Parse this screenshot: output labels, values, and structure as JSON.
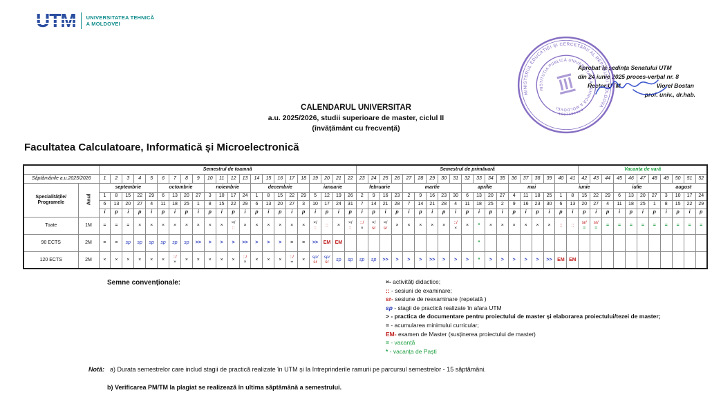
{
  "logo": {
    "mark": "UTM",
    "line1": "UNIVERSITATEA TEHNICĂ",
    "line2": "A MOLDOVEI"
  },
  "approval": {
    "line1": "Aprobat la ședința Senatului UTM",
    "line2": "din 24 iunie 2025 proces-verbal nr. 8",
    "rector_label": "Rector UTM",
    "rector_name": "Viorel Bostan",
    "rector_title": "prof. univ., dr.hab."
  },
  "stamp": {
    "outer_text": "MINISTERUL EDUCAȚIEI ȘI CERCETĂRII AL REPUBLICII MOLDOVA",
    "inner_text": "INSTITUȚIA PUBLICĂ UNIVERSITATEA TEHNICĂ A MOLDOVEI",
    "idno": "1007600010"
  },
  "title": {
    "line1": "CALENDARUL UNIVERSITAR",
    "line2": "a.u. 2025/2026, studii superioare de master, ciclul II",
    "line3": "(învățământ cu frecvență)"
  },
  "faculty_title": "Facultatea Calculatoare, Informatică și Microelectronică",
  "table": {
    "weeks_label": "Săptămânile a.u.2025/2026",
    "col1_header_line1": "Specialitățile/",
    "col1_header_line2": "Programele",
    "anul_header": "Anul",
    "semesters": [
      {
        "label": "Semestrul de toamnă",
        "span": 22,
        "green": false
      },
      {
        "label": "Semestrul de primăvară",
        "span": 19,
        "green": false
      },
      {
        "label": "Vacanța de vară",
        "span": 11,
        "green": true
      }
    ],
    "months": [
      {
        "label": "septembrie",
        "span": 5
      },
      {
        "label": "octombrie",
        "span": 4
      },
      {
        "label": "noiembrie",
        "span": 4
      },
      {
        "label": "decembrie",
        "span": 5
      },
      {
        "label": "ianuarie",
        "span": 4
      },
      {
        "label": "februarie",
        "span": 4
      },
      {
        "label": "martie",
        "span": 5
      },
      {
        "label": "aprilie",
        "span": 4
      },
      {
        "label": "mai",
        "span": 4
      },
      {
        "label": "iunie",
        "span": 5
      },
      {
        "label": "iulie",
        "span": 4
      },
      {
        "label": "august",
        "span": 4
      }
    ],
    "weeks": [
      1,
      2,
      3,
      4,
      5,
      6,
      7,
      8,
      9,
      10,
      11,
      12,
      13,
      14,
      15,
      16,
      17,
      18,
      19,
      20,
      21,
      22,
      23,
      24,
      25,
      26,
      27,
      28,
      29,
      30,
      31,
      32,
      33,
      34,
      35,
      36,
      37,
      38,
      39,
      40,
      41,
      42,
      43,
      44,
      45,
      46,
      47,
      48,
      49,
      50,
      51,
      52
    ],
    "start_dates": [
      1,
      8,
      15,
      22,
      29,
      6,
      13,
      20,
      27,
      3,
      10,
      17,
      24,
      1,
      8,
      15,
      22,
      29,
      5,
      12,
      19,
      26,
      2,
      9,
      16,
      23,
      2,
      9,
      16,
      23,
      30,
      6,
      13,
      20,
      27,
      4,
      11,
      18,
      25,
      1,
      8,
      15,
      22,
      29,
      6,
      13,
      20,
      27,
      3,
      10,
      17,
      24
    ],
    "end_dates": [
      6,
      13,
      20,
      27,
      4,
      11,
      18,
      25,
      1,
      8,
      15,
      22,
      29,
      6,
      13,
      20,
      27,
      3,
      10,
      17,
      24,
      31,
      7,
      14,
      21,
      28,
      7,
      14,
      21,
      28,
      4,
      11,
      18,
      25,
      2,
      9,
      16,
      23,
      30,
      6,
      13,
      20,
      27,
      4,
      11,
      18,
      25,
      1,
      8,
      15,
      22,
      29
    ],
    "ip": [
      "i",
      "p",
      "i",
      "p",
      "i",
      "p",
      "i",
      "p",
      "i",
      "p",
      "i",
      "p",
      "i",
      "p",
      "i",
      "p",
      "i",
      "p",
      "i",
      "p",
      "i",
      "p",
      "i",
      "p",
      "i",
      "p",
      "i",
      "p",
      "i",
      "p",
      "i",
      "p",
      "i",
      "p",
      "i",
      "p",
      "i",
      "p",
      "i",
      "p",
      "i",
      "p",
      "i",
      "p",
      "i",
      "p",
      "i",
      "p",
      "i",
      "p",
      "i",
      "p"
    ],
    "rows": [
      {
        "label": "Toate",
        "year": "1M",
        "cells": [
          "=",
          "=",
          "=",
          "x",
          "x",
          "x",
          "x",
          "x",
          "x",
          "x",
          "x",
          "x/::",
          "x",
          "x",
          "x",
          "x",
          "x",
          "x",
          "x/::",
          "::",
          "x",
          "x/::",
          "::/x",
          "x/sr",
          "x/sr",
          "x",
          "x",
          "x",
          "x",
          "x",
          "::/x",
          "x",
          "*",
          "x",
          "x",
          "x",
          "x",
          "x",
          "x",
          "::",
          "::",
          "sr/=g",
          "sr/=g",
          "=g",
          "=g",
          "=g",
          "=g",
          "=g",
          "=g",
          "=g",
          "=g",
          "=g"
        ]
      },
      {
        "label": "90 ECTS",
        "year": "2M",
        "cells": [
          "=",
          "=",
          "sp",
          "sp",
          "sp",
          "sp",
          "sp",
          "sp",
          ">>",
          ">",
          ">",
          ">",
          ">>",
          ">",
          ">",
          ">",
          "=",
          "=",
          ">>",
          "EM",
          "EM",
          "",
          "",
          "",
          "",
          "",
          "",
          "",
          "",
          "",
          "",
          "",
          "*",
          "",
          "",
          "",
          "",
          "",
          "",
          "",
          "",
          "",
          "",
          "",
          "",
          "",
          "",
          "",
          "",
          "",
          "",
          ""
        ]
      },
      {
        "label": "120 ECTS",
        "year": "2M",
        "cells": [
          "x",
          "x",
          "x",
          "x",
          "x",
          "x",
          "::/x",
          "x",
          "x",
          "x",
          "x",
          "x",
          "::/x",
          "x",
          "x",
          "x",
          "::/=",
          "x",
          "sp/sr",
          "sp/sr",
          "sp",
          "sp",
          "sp",
          "sp",
          ">>",
          ">",
          ">",
          ">",
          ">>",
          ">",
          ">",
          ">",
          "*",
          ">",
          ">",
          ">",
          ">",
          ">",
          ">>",
          "EM",
          "EM",
          "",
          "",
          "",
          "",
          "",
          "",
          "",
          "",
          "",
          "",
          ""
        ]
      }
    ]
  },
  "legend": {
    "title": "Semne convenționale:",
    "items": [
      {
        "symbol": "×-",
        "text": "activități didactice;",
        "sym_class": "ck",
        "text_class": "",
        "bold": false
      },
      {
        "symbol": "::",
        "text": "- sesiuni de examinare;",
        "sym_class": "cr",
        "text_class": "",
        "bold": false
      },
      {
        "symbol": "sr-",
        "text": "sesiune de reexaminare (repetată )",
        "sym_class": "cr",
        "text_class": "",
        "bold": false
      },
      {
        "symbol": "sp",
        "text": "- stagii de practică realizate în afara UTM",
        "sym_class": "cb ci",
        "text_class": "",
        "bold": false
      },
      {
        "symbol": ">",
        "text": "- practica de documentare pentru proiectului de master și elaborarea proiectului/tezei de master;",
        "sym_class": "ck",
        "text_class": "",
        "bold": true
      },
      {
        "symbol": "=",
        "text": "- acumularea minimului curricular;",
        "sym_class": "ck",
        "text_class": "",
        "bold": false
      },
      {
        "symbol": "EM-",
        "text": "examen de Master (susținerea proiectului de master)",
        "sym_class": "cr",
        "text_class": "",
        "bold": false
      },
      {
        "symbol": "=",
        "text": "- vacanță",
        "sym_class": "cg",
        "text_class": "cg",
        "bold": false
      },
      {
        "symbol": "*",
        "text": "- vacanța de Paști",
        "sym_class": "cg",
        "text_class": "cg",
        "bold": false
      }
    ]
  },
  "nota": {
    "label": "Notă:",
    "a": "a) Durata semestrelor care includ stagii de practică realizate în UTM și la întreprinderile ramurii pe parcursul semestrelor - 15 săptămâni.",
    "b": "b) Verificarea PM/TM la plagiat se realizează  în ultima săptămână a semestrului."
  }
}
